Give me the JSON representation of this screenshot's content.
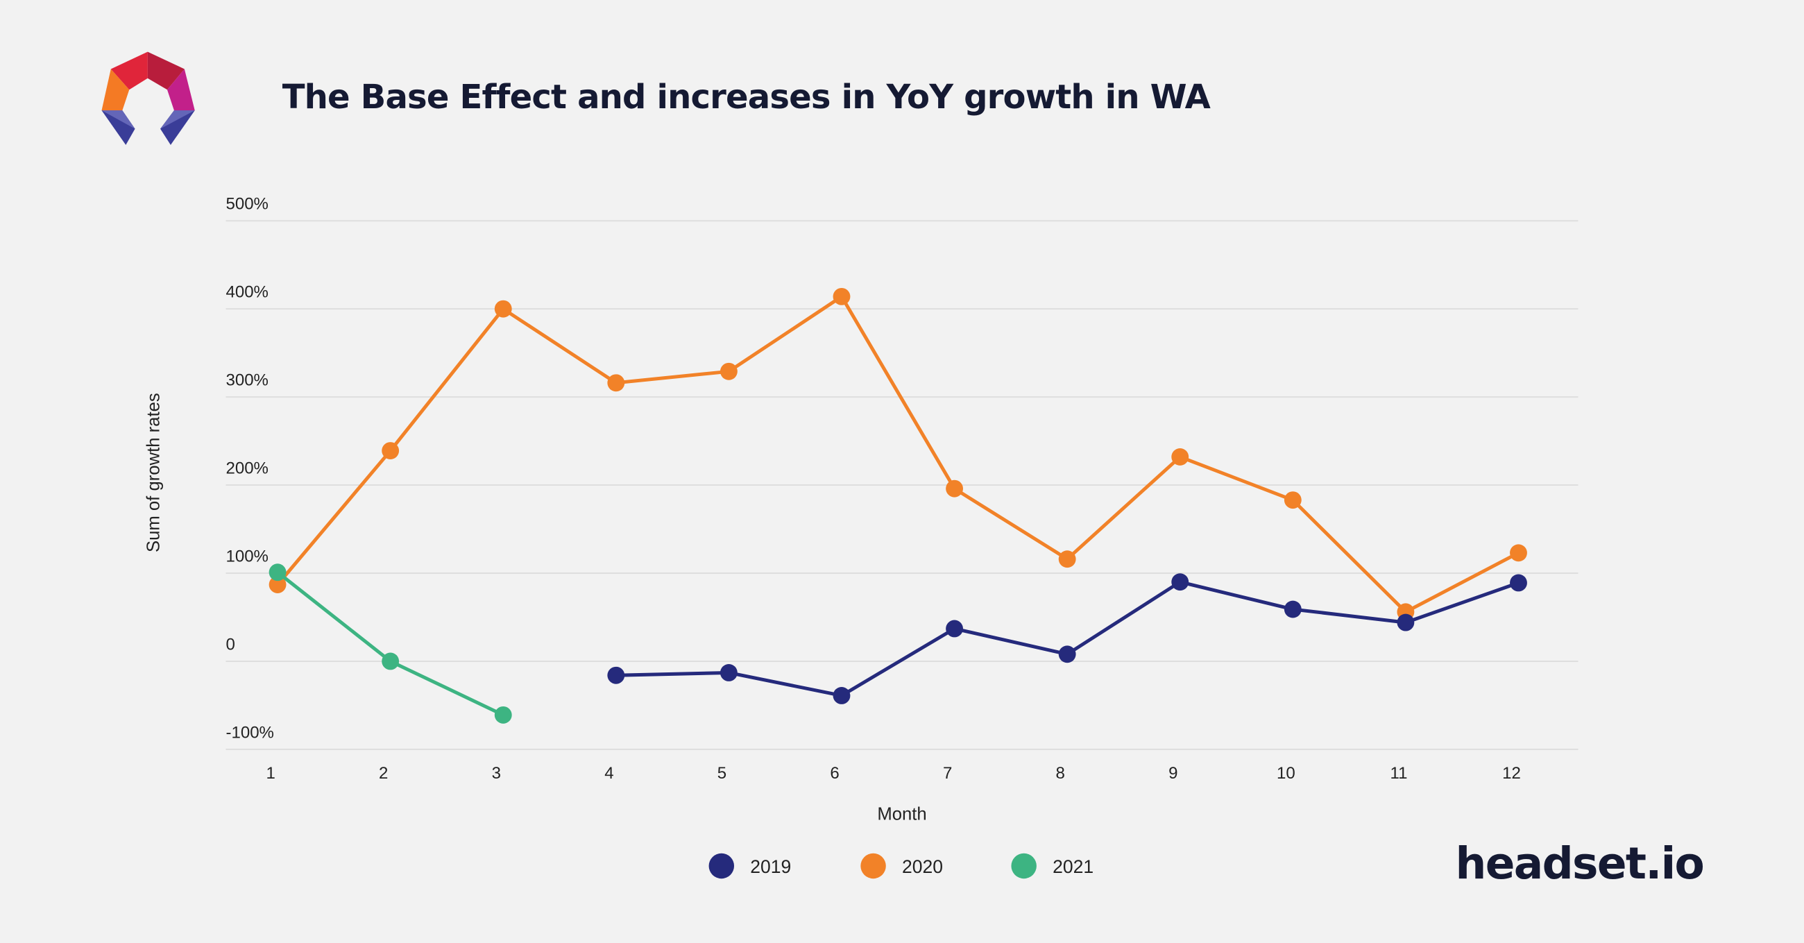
{
  "brand": {
    "name": "headset.io"
  },
  "chart_data": {
    "type": "line",
    "title": "The Base Effect and increases in YoY growth in WA",
    "xlabel": "Month",
    "ylabel": "Sum of growth rates",
    "x": [
      1,
      2,
      3,
      4,
      5,
      6,
      7,
      8,
      9,
      10,
      11,
      12
    ],
    "x_tick_labels": [
      "1",
      "2",
      "3",
      "4",
      "5",
      "6",
      "7",
      "8",
      "9",
      "10",
      "11",
      "12"
    ],
    "y_ticks": [
      500,
      400,
      300,
      200,
      100,
      0,
      -100
    ],
    "y_tick_labels": [
      "500%",
      "400%",
      "300%",
      "200%",
      "100%",
      "0",
      "-100%"
    ],
    "ylim": [
      -100,
      500
    ],
    "grid": true,
    "legend_position": "bottom",
    "series": [
      {
        "name": "2019",
        "color": "#252a7c",
        "values": [
          null,
          null,
          null,
          -16,
          -13,
          -39,
          37,
          8,
          90,
          59,
          44,
          89
        ]
      },
      {
        "name": "2020",
        "color": "#f28228",
        "values": [
          87,
          239,
          400,
          316,
          329,
          414,
          196,
          116,
          232,
          183,
          56,
          123
        ]
      },
      {
        "name": "2021",
        "color": "#3db482",
        "values": [
          101,
          0,
          -61,
          null,
          null,
          null,
          null,
          null,
          null,
          null,
          null,
          null
        ]
      }
    ]
  }
}
